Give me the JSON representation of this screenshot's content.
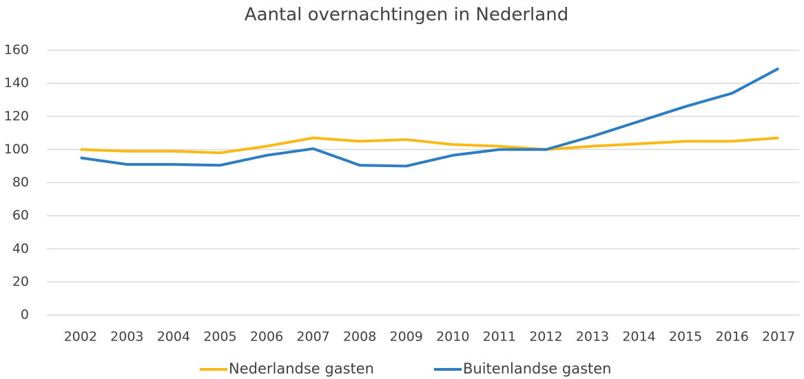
{
  "chart_data": {
    "type": "line",
    "title": "Aantal overnachtingen in Nederland",
    "categories": [
      "2002",
      "2003",
      "2004",
      "2005",
      "2006",
      "2007",
      "2008",
      "2009",
      "2010",
      "2011",
      "2012",
      "2013",
      "2014",
      "2015",
      "2016",
      "2017"
    ],
    "series": [
      {
        "name": "Nederlandse gasten",
        "color": "#fbb917",
        "values": [
          100,
          99,
          99,
          98,
          102,
          107,
          105,
          106,
          103,
          102,
          100,
          102,
          103.5,
          105,
          105,
          107
        ]
      },
      {
        "name": "Buitenlandse gasten",
        "color": "#2e7dc0",
        "values": [
          95,
          91,
          91,
          90.5,
          96.5,
          100.5,
          90.5,
          90,
          96.5,
          100,
          100,
          108,
          117,
          126,
          134,
          149
        ]
      }
    ],
    "ylim": [
      0,
      160
    ],
    "yticks": [
      0,
      20,
      40,
      60,
      80,
      100,
      120,
      140,
      160
    ],
    "grid": true,
    "legend": "bottom"
  }
}
